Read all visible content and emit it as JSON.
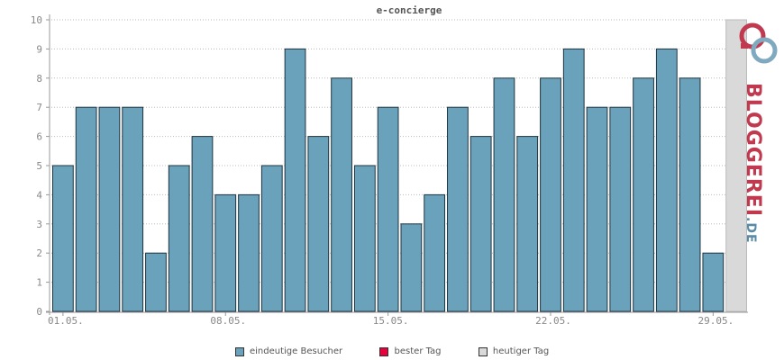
{
  "chart_data": {
    "type": "bar",
    "title": "e-concierge",
    "categories": [
      "01.05.",
      "02.05.",
      "03.05.",
      "04.05.",
      "05.05.",
      "06.05.",
      "07.05.",
      "08.05.",
      "09.05.",
      "10.05.",
      "11.05.",
      "12.05.",
      "13.05.",
      "14.05.",
      "15.05.",
      "16.05.",
      "17.05.",
      "18.05.",
      "19.05.",
      "20.05.",
      "21.05.",
      "22.05.",
      "23.05.",
      "24.05.",
      "25.05.",
      "26.05.",
      "27.05.",
      "28.05.",
      "29.05.",
      "30.05."
    ],
    "x_tick_labels": [
      "01.05.",
      "08.05.",
      "15.05.",
      "22.05.",
      "29.05."
    ],
    "series": [
      {
        "name": "eindeutige Besucher",
        "color": "#6aa2bb",
        "values": [
          5,
          7,
          7,
          7,
          2,
          5,
          6,
          4,
          4,
          5,
          9,
          6,
          8,
          5,
          7,
          3,
          4,
          7,
          6,
          8,
          6,
          8,
          9,
          7,
          7,
          8,
          9,
          8,
          2,
          0
        ]
      }
    ],
    "today": {
      "category": "30.05.",
      "value": 10,
      "color": "#d9d9d9"
    },
    "ylim": [
      0,
      10
    ],
    "y_ticks": [
      0,
      1,
      2,
      3,
      4,
      5,
      6,
      7,
      8,
      9,
      10
    ],
    "grid": true,
    "legend_position": "bottom-center",
    "xlabel": "",
    "ylabel": ""
  },
  "legend": [
    {
      "label": "eindeutige Besucher",
      "color": "#6aa2bb"
    },
    {
      "label": "bester Tag",
      "color": "#e8003c"
    },
    {
      "label": "heutiger Tag",
      "color": "#d9d9d9"
    }
  ],
  "logo": {
    "main": "BLOGGEREI",
    "tld": ".DE"
  }
}
